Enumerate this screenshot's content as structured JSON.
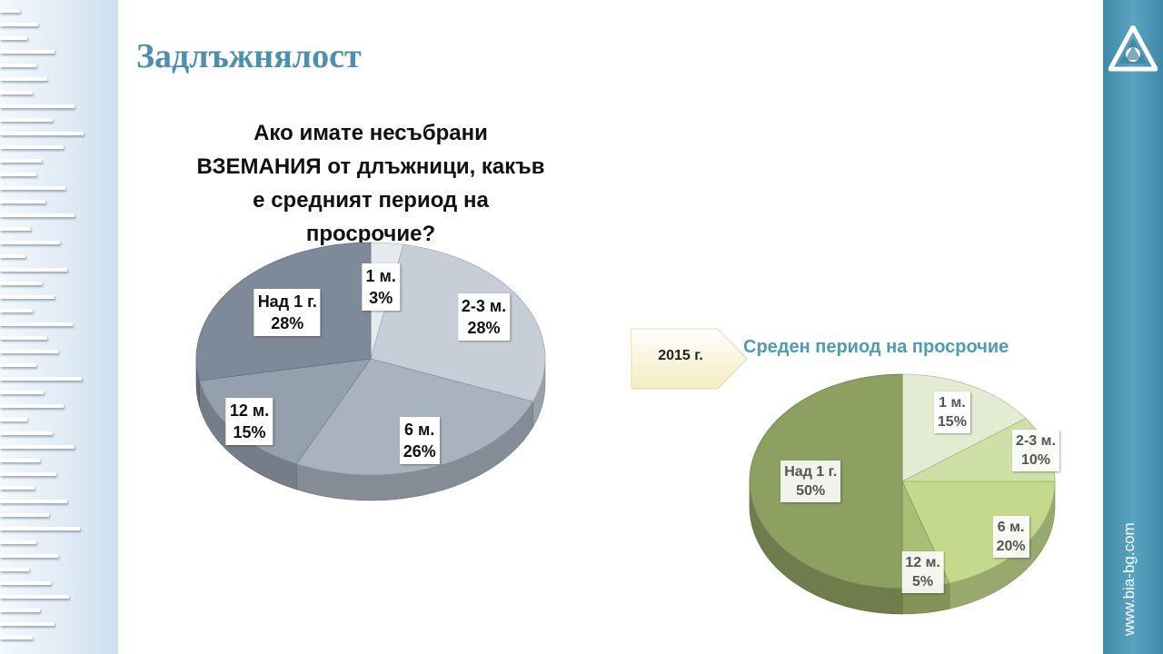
{
  "title": "Задлъжнялост",
  "question": {
    "lines": [
      "Ако имате несъбрани",
      "ВЗЕМАНИЯ от длъжници, какъв",
      "е средният период на",
      "просрочие?"
    ]
  },
  "comparison": {
    "year": "2015 г.",
    "subtitle": "Среден период на просрочие"
  },
  "footer": {
    "url": "www.bia-bg.com"
  },
  "chart_data": [
    {
      "type": "pie",
      "title": "Ако имате несъбрани ВЗЕМАНИЯ от длъжници, какъв е средният период на просрочие?",
      "categories": [
        "1 м.",
        "2-3 м.",
        "6 м.",
        "12 м.",
        "Над 1 г."
      ],
      "values": [
        3,
        28,
        26,
        15,
        28
      ],
      "labels": [
        {
          "name": "1 м.",
          "pct": "3%"
        },
        {
          "name": "2-3 м.",
          "pct": "28%"
        },
        {
          "name": "6 м.",
          "pct": "26%"
        },
        {
          "name": "12 м.",
          "pct": "15%"
        },
        {
          "name": "Над 1 г.",
          "pct": "28%"
        }
      ],
      "colors": [
        "#e6e9ed",
        "#c7ced7",
        "#a9b3bf",
        "#95a0ae",
        "#7e8a99"
      ],
      "style": "3d"
    },
    {
      "type": "pie",
      "title": "Среден период на просрочие",
      "categories": [
        "1 м.",
        "2-3 м.",
        "6 м.",
        "12 м.",
        "Над 1 г."
      ],
      "values": [
        15,
        10,
        20,
        5,
        50
      ],
      "labels": [
        {
          "name": "1 м.",
          "pct": "15%"
        },
        {
          "name": "2-3 м.",
          "pct": "10%"
        },
        {
          "name": "6 м.",
          "pct": "20%"
        },
        {
          "name": "12 м.",
          "pct": "5%"
        },
        {
          "name": "Над 1 г.",
          "pct": "50%"
        }
      ],
      "colors": [
        "#e3ebd2",
        "#cfe0a6",
        "#c4d98c",
        "#aabd74",
        "#8e9f62"
      ],
      "style": "3d"
    }
  ]
}
